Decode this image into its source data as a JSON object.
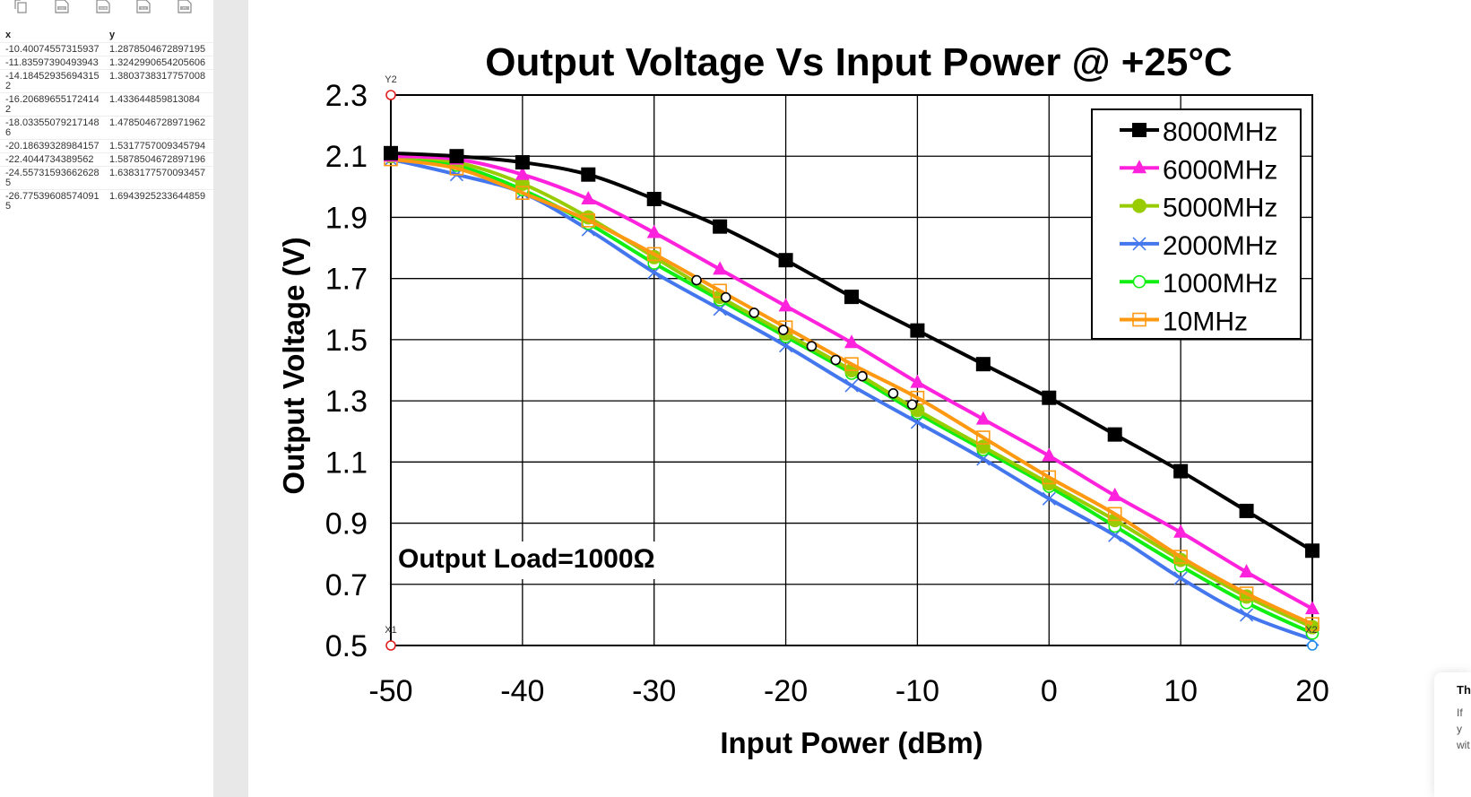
{
  "toolbar": {
    "icons": [
      {
        "name": "copy-icon",
        "label": ""
      },
      {
        "name": "csv-icon",
        "label": "CSV"
      },
      {
        "name": "json-icon",
        "label": "JSON"
      },
      {
        "name": "xls-icon",
        "label": "XLS"
      },
      {
        "name": "py-icon",
        "label": "PY"
      }
    ]
  },
  "table": {
    "headers": [
      "x",
      "y"
    ],
    "rows": [
      [
        "-10.40074557315937",
        "1.2878504672897195"
      ],
      [
        "-11.83597390493943",
        "1.3242990654205606"
      ],
      [
        "-14.184529356943152",
        "1.3803738317757008"
      ],
      [
        "-16.206896551724142",
        "1.433644859813084"
      ],
      [
        "-18.033550792171486",
        "1.4785046728971962"
      ],
      [
        "-20.18639328984157",
        "1.5317757009345794"
      ],
      [
        "-22.4044734389562",
        "1.5878504672897196"
      ],
      [
        "-24.557315936626285",
        "1.6383177570093457"
      ],
      [
        "-26.775396085740915",
        "1.6943925233644859"
      ]
    ]
  },
  "toast": {
    "title": "Th",
    "body": "If y wit"
  },
  "chart_data": {
    "type": "line",
    "title": "Output Voltage Vs Input Power @ +25°C",
    "xlabel": "Input Power (dBm)",
    "ylabel": "Output Voltage (V)",
    "annotation": "Output Load=1000Ω",
    "xlim": [
      -50,
      20
    ],
    "ylim": [
      0.5,
      2.3
    ],
    "xticks": [
      "-50",
      "-40",
      "-30",
      "-20",
      "-10",
      "0",
      "10",
      "20"
    ],
    "yticks": [
      "0.5",
      "0.7",
      "0.9",
      "1.1",
      "1.3",
      "1.5",
      "1.7",
      "1.9",
      "2.1",
      "2.3"
    ],
    "grid": true,
    "legend_position": "top-right",
    "axis_markers": {
      "y2": "Y2",
      "x1": "X1",
      "x2": "X2"
    },
    "x": [
      -50,
      -45,
      -40,
      -35,
      -30,
      -25,
      -20,
      -15,
      -10,
      -5,
      0,
      5,
      10,
      15,
      20
    ],
    "series": [
      {
        "name": "8000MHz",
        "color": "#000000",
        "marker": "square",
        "values": [
          2.11,
          2.1,
          2.08,
          2.04,
          1.96,
          1.87,
          1.76,
          1.64,
          1.53,
          1.42,
          1.31,
          1.19,
          1.07,
          0.94,
          0.81
        ]
      },
      {
        "name": "6000MHz",
        "color": "#ff22dd",
        "marker": "triangle",
        "values": [
          2.1,
          2.09,
          2.04,
          1.96,
          1.85,
          1.73,
          1.61,
          1.49,
          1.36,
          1.24,
          1.12,
          0.99,
          0.87,
          0.74,
          0.62
        ]
      },
      {
        "name": "5000MHz",
        "color": "#99cc00",
        "marker": "dot",
        "values": [
          2.1,
          2.08,
          2.01,
          1.9,
          1.77,
          1.64,
          1.52,
          1.4,
          1.27,
          1.15,
          1.03,
          0.91,
          0.78,
          0.66,
          0.56
        ]
      },
      {
        "name": "2000MHz",
        "color": "#4477ee",
        "marker": "x",
        "values": [
          2.09,
          2.04,
          1.98,
          1.86,
          1.72,
          1.6,
          1.48,
          1.35,
          1.23,
          1.11,
          0.98,
          0.86,
          0.72,
          0.6,
          0.52
        ]
      },
      {
        "name": "1000MHz",
        "color": "#11ee11",
        "marker": "circle",
        "values": [
          2.1,
          2.07,
          1.99,
          1.88,
          1.75,
          1.63,
          1.51,
          1.39,
          1.26,
          1.14,
          1.02,
          0.89,
          0.76,
          0.64,
          0.54
        ]
      },
      {
        "name": "10MHz",
        "color": "#ff9911",
        "marker": "open-square",
        "values": [
          2.09,
          2.06,
          1.98,
          1.89,
          1.78,
          1.66,
          1.54,
          1.42,
          1.31,
          1.18,
          1.05,
          0.93,
          0.79,
          0.67,
          0.57
        ]
      }
    ],
    "extracted_points": {
      "x": [
        -26.775396085740915,
        -24.557315936626285,
        -22.4044734389562,
        -20.18639328984157,
        -18.033550792171486,
        -16.206896551724142,
        -14.184529356943152,
        -11.83597390493943,
        -10.40074557315937
      ],
      "y": [
        1.6943925233644859,
        1.6383177570093457,
        1.5878504672897196,
        1.5317757009345794,
        1.4785046728971962,
        1.433644859813084,
        1.3803738317757008,
        1.3242990654205606,
        1.2878504672897195
      ]
    }
  }
}
